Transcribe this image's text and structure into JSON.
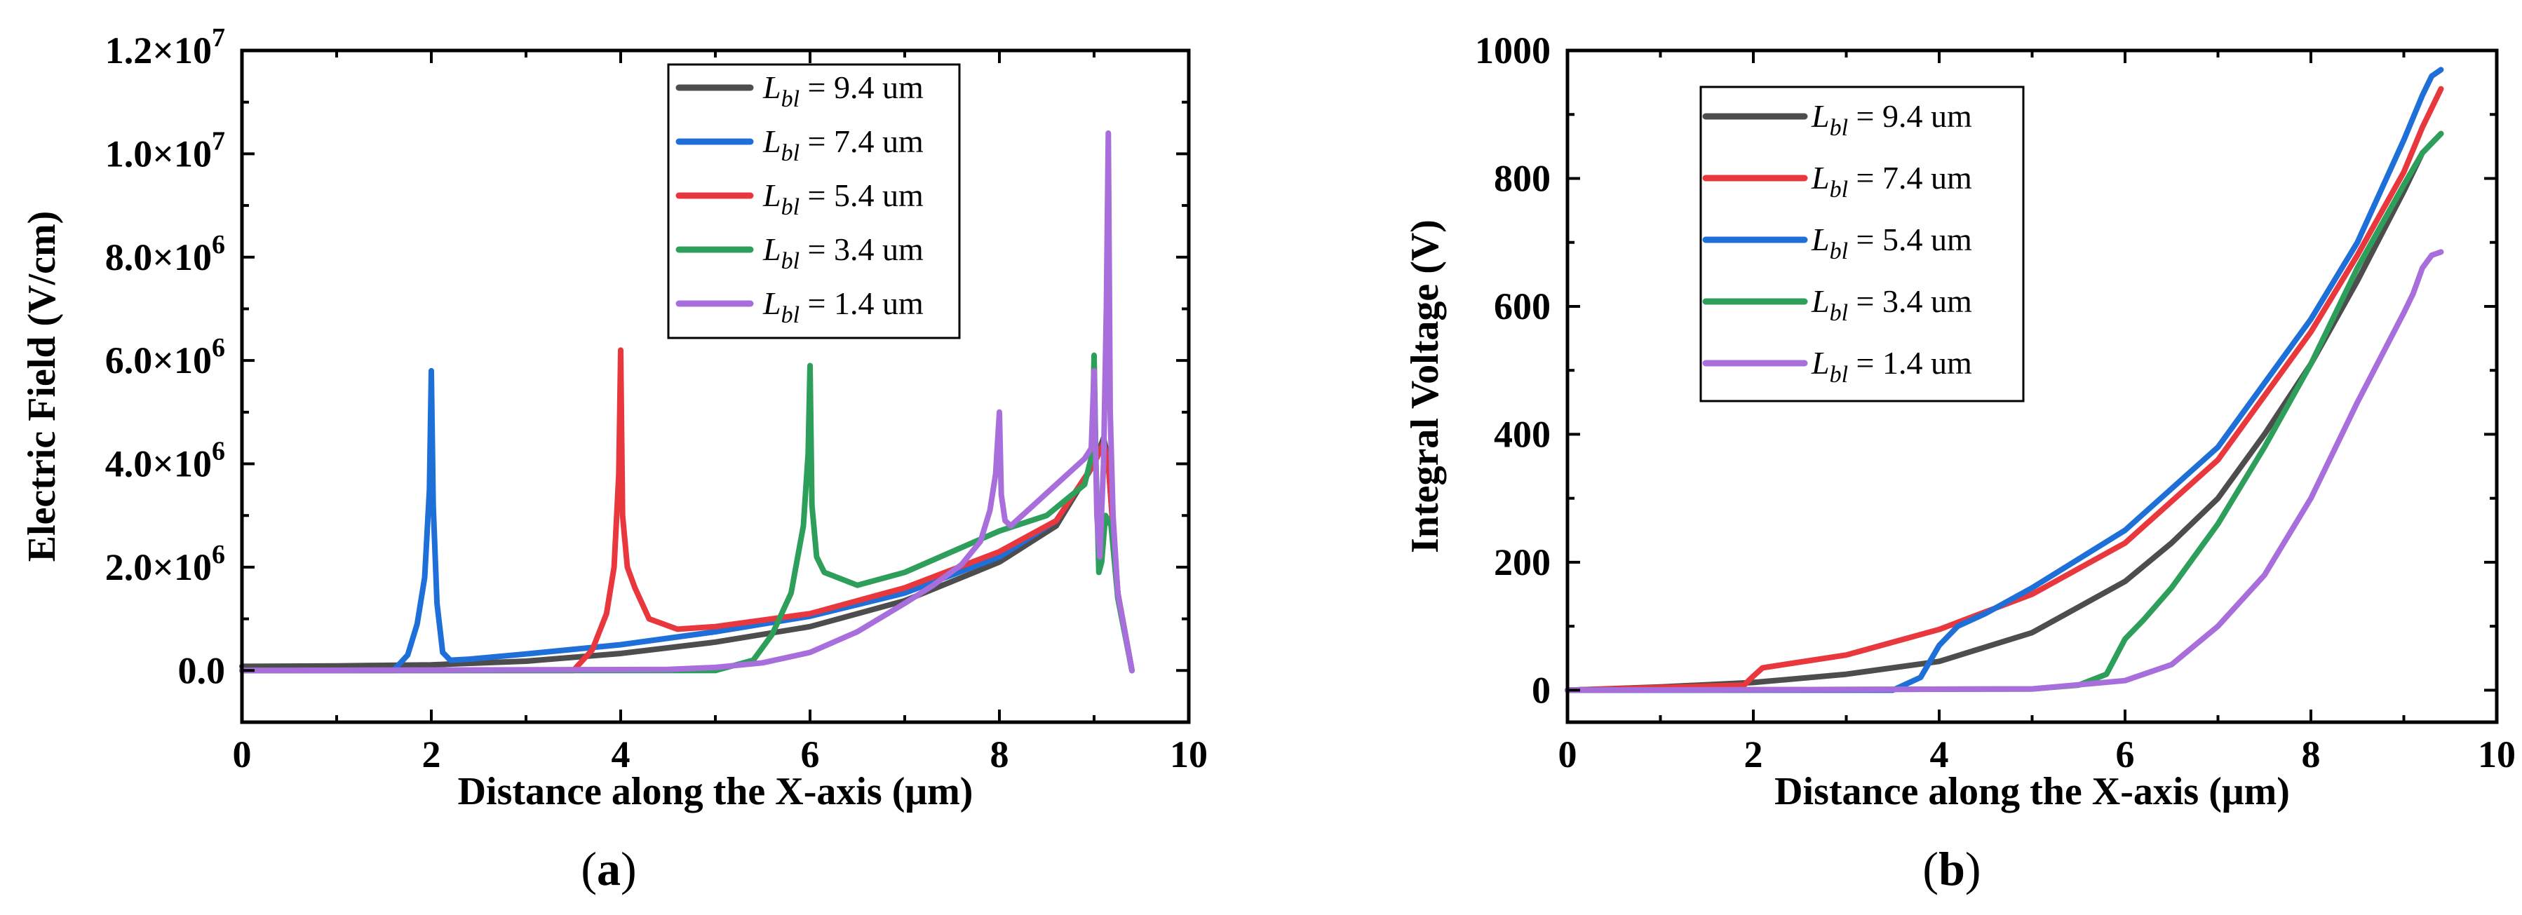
{
  "chart_data": [
    {
      "panel": "a",
      "type": "line",
      "caption_open": "(",
      "caption_letter": "a",
      "caption_close": ")",
      "xlabel": "Distance along the X-axis (μm)",
      "ylabel": "Electric Field (V/cm)",
      "xlim": [
        0,
        10
      ],
      "ylim": [
        -1000000,
        12000000
      ],
      "xticks": [
        0,
        2,
        4,
        6,
        8,
        10
      ],
      "xtick_labels": [
        "0",
        "2",
        "4",
        "6",
        "8",
        "10"
      ],
      "yticks": [
        0,
        2000000,
        4000000,
        6000000,
        8000000,
        10000000,
        12000000
      ],
      "ytick_labels": [
        {
          "mant": "0.0",
          "exp": ""
        },
        {
          "mant": "2.0×10",
          "exp": "6"
        },
        {
          "mant": "4.0×10",
          "exp": "6"
        },
        {
          "mant": "6.0×10",
          "exp": "6"
        },
        {
          "mant": "8.0×10",
          "exp": "6"
        },
        {
          "mant": "1.0×10",
          "exp": "7"
        },
        {
          "mant": "1.2×10",
          "exp": "7"
        }
      ],
      "legend": {
        "position": "top-right"
      },
      "series": [
        {
          "name": "L_bl = 9.4 um",
          "label_main": "L",
          "label_sub": "bl",
          "label_rest": " = 9.4 um",
          "color": "#4d4d4d",
          "x": [
            0,
            1.0,
            2.0,
            3.0,
            4.0,
            5.0,
            6.0,
            7.0,
            8.0,
            8.6,
            9.0,
            9.1,
            9.15,
            9.25,
            9.4
          ],
          "y": [
            80000,
            90000,
            110000,
            180000,
            330000,
            550000,
            850000,
            1350000,
            2100000,
            2800000,
            4000000,
            4500000,
            4100000,
            1500000,
            0
          ]
        },
        {
          "name": "L_bl = 7.4 um",
          "label_main": "L",
          "label_sub": "bl",
          "label_rest": " = 7.4 um",
          "color": "#1f6fd8",
          "x": [
            0,
            1.6,
            1.75,
            1.85,
            1.93,
            1.98,
            2.0,
            2.02,
            2.06,
            2.12,
            2.2,
            2.4,
            3.0,
            4.0,
            5.0,
            6.0,
            7.0,
            8.0,
            8.6,
            9.0,
            9.1,
            9.15,
            9.25,
            9.4
          ],
          "y": [
            0,
            0,
            300000,
            900000,
            1800000,
            3500000,
            5800000,
            3200000,
            1300000,
            350000,
            200000,
            220000,
            320000,
            500000,
            750000,
            1050000,
            1500000,
            2200000,
            2900000,
            4000000,
            4400000,
            4000000,
            1500000,
            0
          ]
        },
        {
          "name": "L_bl = 5.4 um",
          "label_main": "L",
          "label_sub": "bl",
          "label_rest": " = 5.4 um",
          "color": "#e8383d",
          "x": [
            0,
            3.5,
            3.7,
            3.85,
            3.93,
            3.98,
            4.0,
            4.02,
            4.07,
            4.15,
            4.3,
            4.6,
            5.0,
            6.0,
            7.0,
            8.0,
            8.6,
            9.0,
            9.1,
            9.15,
            9.25,
            9.4
          ],
          "y": [
            0,
            0,
            400000,
            1100000,
            2000000,
            3800000,
            6200000,
            3000000,
            2000000,
            1600000,
            1000000,
            800000,
            850000,
            1100000,
            1600000,
            2300000,
            2900000,
            4000000,
            4400000,
            4000000,
            1500000,
            0
          ]
        },
        {
          "name": "L_bl = 3.4 um",
          "label_main": "L",
          "label_sub": "bl",
          "label_rest": " = 3.4 um",
          "color": "#2e9e5b",
          "x": [
            0,
            5.0,
            5.4,
            5.6,
            5.8,
            5.93,
            5.98,
            6.0,
            6.02,
            6.07,
            6.15,
            6.5,
            7.0,
            7.5,
            8.0,
            8.5,
            8.9,
            8.98,
            9.0,
            9.02,
            9.05,
            9.08,
            9.12,
            9.18,
            9.25,
            9.4
          ],
          "y": [
            0,
            0,
            200000,
            700000,
            1500000,
            2800000,
            4200000,
            5900000,
            3200000,
            2200000,
            1900000,
            1650000,
            1900000,
            2300000,
            2700000,
            3000000,
            3600000,
            4200000,
            6100000,
            4000000,
            1900000,
            2100000,
            3000000,
            2800000,
            1400000,
            0
          ]
        },
        {
          "name": "L_bl = 1.4 um",
          "label_main": "L",
          "label_sub": "bl",
          "label_rest": " = 1.4 um",
          "color": "#a86fdc",
          "x": [
            0,
            4.5,
            5.0,
            5.5,
            6.0,
            6.5,
            7.0,
            7.3,
            7.6,
            7.8,
            7.9,
            7.96,
            8.0,
            8.02,
            8.06,
            8.12,
            8.3,
            8.6,
            8.9,
            8.97,
            9.0,
            9.03,
            9.06,
            9.1,
            9.13,
            9.15,
            9.17,
            9.2,
            9.25,
            9.4
          ],
          "y": [
            0,
            20000,
            60000,
            150000,
            350000,
            750000,
            1300000,
            1650000,
            2050000,
            2500000,
            3100000,
            3800000,
            5000000,
            3400000,
            2900000,
            2800000,
            3100000,
            3600000,
            4100000,
            4300000,
            5800000,
            3000000,
            2200000,
            4000000,
            7000000,
            10400000,
            5000000,
            3000000,
            1500000,
            0
          ]
        }
      ]
    },
    {
      "panel": "b",
      "type": "line",
      "caption_open": "(",
      "caption_letter": "b",
      "caption_close": ")",
      "xlabel": "Distance along the X-axis (μm)",
      "ylabel": "Integral Voltage (V)",
      "xlim": [
        0,
        10
      ],
      "ylim": [
        -50,
        1000
      ],
      "xticks": [
        0,
        2,
        4,
        6,
        8,
        10
      ],
      "xtick_labels": [
        "0",
        "2",
        "4",
        "6",
        "8",
        "10"
      ],
      "yticks": [
        0,
        200,
        400,
        600,
        800,
        1000
      ],
      "ytick_labels": [
        {
          "mant": "0",
          "exp": ""
        },
        {
          "mant": "200",
          "exp": ""
        },
        {
          "mant": "400",
          "exp": ""
        },
        {
          "mant": "600",
          "exp": ""
        },
        {
          "mant": "800",
          "exp": ""
        },
        {
          "mant": "1000",
          "exp": ""
        }
      ],
      "legend": {
        "position": "top-left"
      },
      "series": [
        {
          "name": "L_bl = 9.4 um",
          "label_main": "L",
          "label_sub": "bl",
          "label_rest": " = 9.4 um",
          "color": "#4d4d4d",
          "x": [
            0,
            1,
            2,
            3,
            4,
            5,
            6,
            6.5,
            7,
            7.5,
            8,
            8.5,
            9,
            9.2,
            9.4
          ],
          "y": [
            0,
            5,
            12,
            25,
            45,
            90,
            170,
            230,
            300,
            400,
            510,
            640,
            780,
            840,
            870
          ]
        },
        {
          "name": "L_bl = 7.4 um",
          "label_main": "L",
          "label_sub": "bl",
          "label_rest": " = 7.4 um",
          "color": "#e8383d",
          "x": [
            0,
            1.9,
            2.0,
            2.1,
            3,
            4,
            5,
            6,
            7,
            8,
            8.5,
            9,
            9.2,
            9.4
          ],
          "y": [
            0,
            8,
            22,
            35,
            55,
            95,
            150,
            230,
            360,
            560,
            680,
            810,
            880,
            940
          ]
        },
        {
          "name": "L_bl = 5.4 um",
          "label_main": "L",
          "label_sub": "bl",
          "label_rest": " = 5.4 um",
          "color": "#1f6fd8",
          "x": [
            0,
            3.5,
            3.8,
            4.0,
            4.2,
            4.5,
            5,
            6,
            7,
            8,
            8.5,
            9,
            9.2,
            9.3,
            9.4
          ],
          "y": [
            0,
            0,
            20,
            70,
            100,
            120,
            160,
            250,
            380,
            580,
            700,
            860,
            930,
            960,
            970
          ]
        },
        {
          "name": "L_bl = 3.4 um",
          "label_main": "L",
          "label_sub": "bl",
          "label_rest": " = 3.4 um",
          "color": "#2e9e5b",
          "x": [
            0,
            5.0,
            5.5,
            5.8,
            6.0,
            6.2,
            6.5,
            7,
            7.5,
            8,
            8.5,
            9,
            9.2,
            9.4
          ],
          "y": [
            0,
            2,
            8,
            25,
            80,
            110,
            160,
            260,
            380,
            510,
            660,
            790,
            840,
            870
          ]
        },
        {
          "name": "L_bl = 1.4 um",
          "label_main": "L",
          "label_sub": "bl",
          "label_rest": " = 1.4 um",
          "color": "#a86fdc",
          "x": [
            0,
            5,
            6,
            6.5,
            7,
            7.5,
            8,
            8.5,
            9,
            9.1,
            9.2,
            9.3,
            9.4
          ],
          "y": [
            0,
            2,
            15,
            40,
            100,
            180,
            300,
            450,
            590,
            620,
            660,
            680,
            685
          ]
        }
      ]
    }
  ]
}
